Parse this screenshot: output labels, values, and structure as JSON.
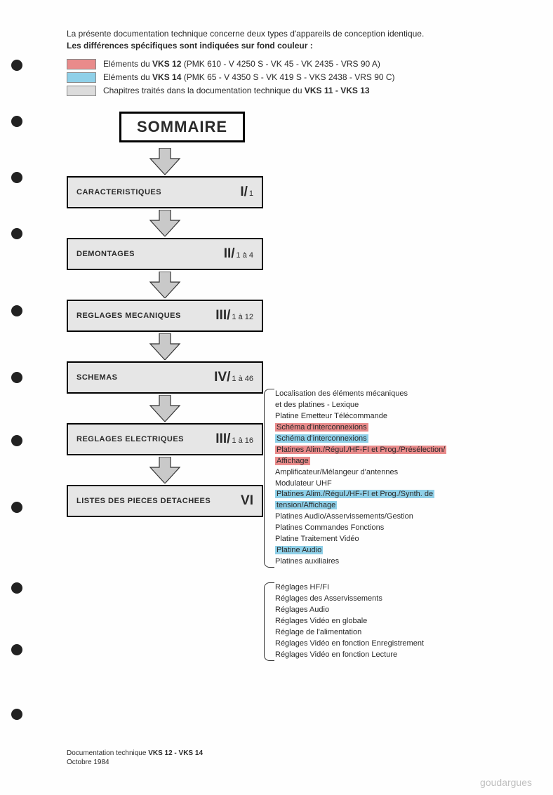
{
  "intro": {
    "line1": "La présente documentation technique concerne deux types d'appareils de conception identique.",
    "line2": "Les différences spécifiques sont indiquées sur fond couleur :"
  },
  "legend": [
    {
      "color": "#e98b8b",
      "prefix": "Eléments du ",
      "bold": "VKS 12",
      "suffix": " (PMK 610 - V 4250 S - VK 45 - VK 2435 - VRS 90 A)"
    },
    {
      "color": "#8fd0e8",
      "prefix": "Eléments du ",
      "bold": "VKS 14",
      "suffix": " (PMK 65 - V 4350 S - VK 419 S - VKS 2438 - VRS 90 C)"
    },
    {
      "color": "#dcdcdc",
      "prefix": "Chapitres traités dans la documentation technique du ",
      "bold": "VKS 11 - VKS 13",
      "suffix": ""
    }
  ],
  "title": "SOMMAIRE",
  "flow": [
    {
      "label": "CARACTERISTIQUES",
      "roman": "I/",
      "sub": "1"
    },
    {
      "label": "DEMONTAGES",
      "roman": "II/",
      "sub": "1 à 4"
    },
    {
      "label": "REGLAGES MECANIQUES",
      "roman": "III/",
      "sub": "1 à 12"
    },
    {
      "label": "SCHEMAS",
      "roman": "IV/",
      "sub": "1 à 46"
    },
    {
      "label": "REGLAGES ELECTRIQUES",
      "roman": "III/",
      "sub": "1 à 16"
    },
    {
      "label": "LISTES DES PIECES DETACHEES",
      "roman": "VI",
      "sub": ""
    }
  ],
  "schemas_list": [
    {
      "text": "Localisation des éléments mécaniques",
      "hl": null
    },
    {
      "text": "et des platines - Lexique",
      "hl": null
    },
    {
      "text": "Platine Emetteur Télécommande",
      "hl": null
    },
    {
      "text": "Schéma d'interconnexions",
      "hl": "#e98b8b"
    },
    {
      "text": "Schéma d'interconnexions",
      "hl": "#8fd0e8"
    },
    {
      "text": "Platines Alim./Régul./HF-FI et Prog./Présélection/",
      "hl": "#e98b8b"
    },
    {
      "text": "Affichage",
      "hl": "#e98b8b"
    },
    {
      "text": "Amplificateur/Mélangeur d'antennes",
      "hl": null
    },
    {
      "text": "Modulateur UHF",
      "hl": null
    },
    {
      "text": "Platines Alim./Régul./HF-FI et Prog./Synth. de",
      "hl": "#8fd0e8"
    },
    {
      "text": "tension/Affichage",
      "hl": "#8fd0e8"
    },
    {
      "text": "Platines Audio/Asservissements/Gestion",
      "hl": null
    },
    {
      "text": "Platines Commandes Fonctions",
      "hl": null
    },
    {
      "text": "Platine Traitement Vidéo",
      "hl": null
    },
    {
      "text": "Platine Audio",
      "hl": "#8fd0e8"
    },
    {
      "text": "Platines auxiliaires",
      "hl": null
    }
  ],
  "reglages_list": [
    "Réglages HF/FI",
    "Réglages des Asservissements",
    "Réglages Audio",
    "Réglages Vidéo en globale",
    "Réglage  de l'alimentation",
    "Réglages Vidéo en fonction Enregistrement",
    "Réglages Vidéo en fonction Lecture"
  ],
  "footer": {
    "line1_prefix": "Documentation technique  ",
    "line1_bold": "VKS 12 - VKS 14",
    "line2": "Octobre 1984"
  },
  "watermark": "goudargues",
  "arrow": {
    "fill": "#c9c9c9",
    "stroke": "#333333",
    "width": 50,
    "height": 38
  },
  "colors": {
    "box_bg": "#e6e6e6",
    "box_border": "#000000",
    "text": "#2a2a2a"
  },
  "hole_positions": [
    85,
    165,
    245,
    325,
    435,
    530,
    620,
    715,
    830,
    918,
    1010
  ]
}
